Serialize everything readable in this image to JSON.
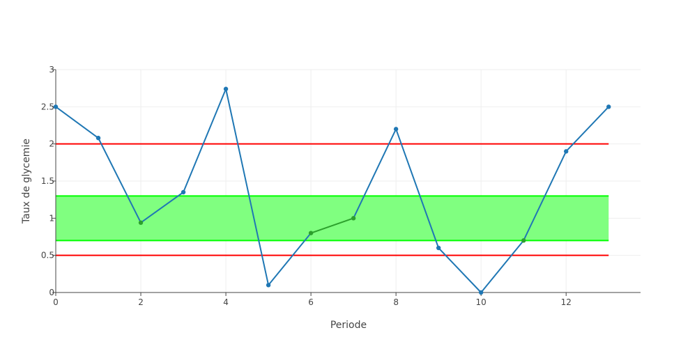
{
  "chart_data": {
    "type": "line",
    "title": "",
    "xlabel": "Periode",
    "ylabel": "Taux de glycemie",
    "xlim": [
      0,
      13.75
    ],
    "ylim": [
      0,
      3
    ],
    "x_ticks": [
      0,
      2,
      4,
      6,
      8,
      10,
      12
    ],
    "y_ticks": [
      0,
      0.5,
      1,
      1.5,
      2,
      2.5,
      3
    ],
    "x_tick_labels": [
      "0",
      "2",
      "4",
      "6",
      "8",
      "10",
      "12"
    ],
    "y_tick_labels": [
      "0",
      "0.5",
      "1",
      "1.5",
      "2",
      "2.5",
      "3"
    ],
    "grid": true,
    "legend": "none",
    "series": [
      {
        "x": [
          0,
          1,
          2,
          3,
          4,
          5,
          6,
          7,
          8,
          9,
          10,
          11,
          12,
          13
        ],
        "values": [
          2.5,
          2.08,
          0.94,
          1.35,
          2.74,
          0.1,
          0.8,
          1.0,
          2.2,
          0.6,
          0.0,
          0.7,
          1.9,
          2.5
        ],
        "color": "#1f77b4",
        "in_band_color": "#2ca02c"
      }
    ],
    "reference_lines": [
      {
        "y": 2.0,
        "x_range": [
          0,
          13
        ],
        "color": "#ff0000"
      },
      {
        "y": 0.5,
        "x_range": [
          0,
          13
        ],
        "color": "#ff0000"
      }
    ],
    "band": {
      "y_range": [
        0.7,
        1.3
      ],
      "x_range": [
        0,
        13
      ],
      "fill": "#80ff80",
      "edge": "#00ff00"
    }
  }
}
